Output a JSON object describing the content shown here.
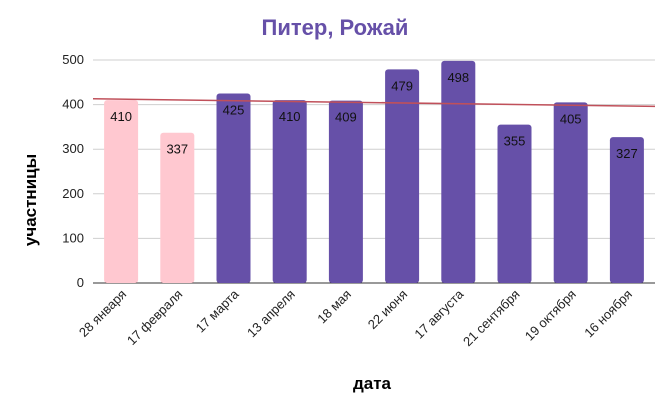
{
  "chart_data": {
    "type": "bar",
    "title": "Питер, Рожай",
    "xlabel": "дата",
    "ylabel": "участницы",
    "categories": [
      "28 января",
      "17 февраля",
      "17 марта",
      "13 апреля",
      "18 мая",
      "22 июня",
      "17 августа",
      "21 сентября",
      "19 октября",
      "16 ноября"
    ],
    "values": [
      410,
      337,
      425,
      410,
      409,
      479,
      498,
      355,
      405,
      327
    ],
    "bar_colors": [
      "#ffc8d0",
      "#ffc8d0",
      "#6650a8",
      "#6650a8",
      "#6650a8",
      "#6650a8",
      "#6650a8",
      "#6650a8",
      "#6650a8",
      "#6650a8"
    ],
    "title_color": "#6650a8",
    "trendline": {
      "color": "#c0505a",
      "start": 413,
      "end": 396
    },
    "ylim": [
      0,
      500
    ],
    "yticks": [
      0,
      100,
      200,
      300,
      400,
      500
    ],
    "grid": true,
    "legend": "none"
  }
}
